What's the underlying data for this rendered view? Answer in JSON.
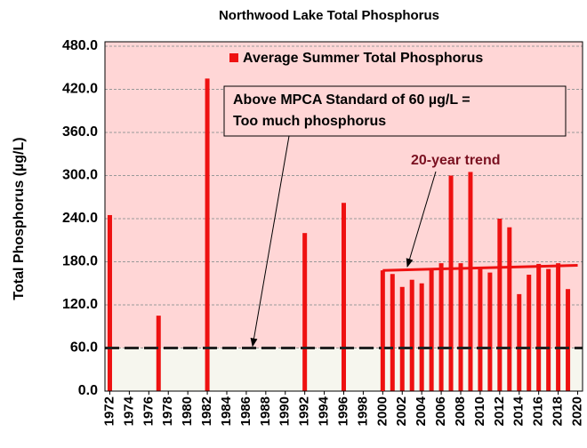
{
  "chart_data": {
    "type": "bar",
    "title": "Northwood Lake Total Phosphorus",
    "y_label": "Total Phosphorus (µg/L)",
    "legend": "Average Summer Total Phosphorus",
    "color": "#ee1111",
    "x": [
      1972,
      1977,
      1982,
      1992,
      1996,
      2000,
      2001,
      2002,
      2003,
      2004,
      2005,
      2006,
      2007,
      2008,
      2009,
      2010,
      2011,
      2012,
      2013,
      2014,
      2015,
      2016,
      2017,
      2018,
      2019
    ],
    "values": [
      245,
      105,
      435,
      220,
      262,
      168,
      163,
      145,
      155,
      150,
      170,
      178,
      300,
      178,
      305,
      170,
      165,
      240,
      228,
      135,
      162,
      177,
      170,
      178,
      142
    ],
    "xlim": [
      1971.5,
      2020.5
    ],
    "xticks": [
      1972,
      1974,
      1976,
      1978,
      1980,
      1982,
      1984,
      1986,
      1988,
      1990,
      1992,
      1994,
      1996,
      1998,
      2000,
      2002,
      2004,
      2006,
      2008,
      2010,
      2012,
      2014,
      2016,
      2018,
      2020
    ],
    "ylim": [
      0,
      480
    ],
    "yticks": [
      {
        "value": 0,
        "label": "0.0"
      },
      {
        "value": 60,
        "label": "60.0"
      },
      {
        "value": 120,
        "label": "120.0"
      },
      {
        "value": 180,
        "label": "180.0"
      },
      {
        "value": 240,
        "label": "240.0"
      },
      {
        "value": 300,
        "label": "300.0"
      },
      {
        "value": 360,
        "label": "360.0"
      },
      {
        "value": 420,
        "label": "420.0"
      },
      {
        "value": 480,
        "label": "480.0"
      }
    ],
    "grid": true,
    "standard": {
      "value": 60,
      "label": [
        "Above MPCA Standard of 60 µg/L =",
        "Too much phosphorus"
      ]
    },
    "trend": {
      "label": "20-year trend",
      "x": [
        2000,
        2020
      ],
      "values": [
        168,
        175
      ]
    }
  }
}
